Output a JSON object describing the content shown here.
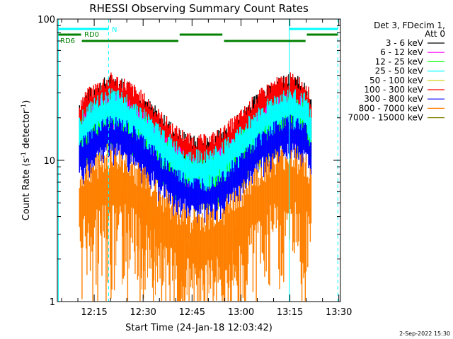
{
  "chart_data": {
    "type": "line",
    "title": "RHESSI Observing Summary Count Rates",
    "xlabel": "Start Time (24-Jan-18 12:03:42)",
    "ylabel_main": "Count Rate (s",
    "ylabel_sup": "-1",
    "ylabel_rest": " detector",
    "ylabel_sup2": "-1",
    "ylabel_end": ")",
    "yscale": "log",
    "ylim": [
      1,
      100
    ],
    "y_ticks": [
      {
        "value": 1,
        "label": "1"
      },
      {
        "value": 10,
        "label": "10"
      },
      {
        "value": 100,
        "label": "100"
      }
    ],
    "xlim_minutes": [
      3.7,
      90.5
    ],
    "x_ticks": [
      {
        "minute": 15,
        "label": "12:15"
      },
      {
        "minute": 30,
        "label": "12:30"
      },
      {
        "minute": 45,
        "label": "12:45"
      },
      {
        "minute": 60,
        "label": "13:00"
      },
      {
        "minute": 75,
        "label": "13:15"
      },
      {
        "minute": 90,
        "label": "13:30"
      }
    ],
    "legend_header": [
      "Det 3, FDecim 1,",
      "Att 0"
    ],
    "series": [
      {
        "name": "3 - 6 keV",
        "color": "#000000",
        "scale": 0.98
      },
      {
        "name": "6 - 12 keV",
        "color": "#ff00ff",
        "scale": 0.72
      },
      {
        "name": "12 - 25 keV",
        "color": "#00ff00",
        "scale": 0.68
      },
      {
        "name": "25 - 50 keV",
        "color": "#00ffff",
        "scale": 0.78
      },
      {
        "name": "50 - 100 keV",
        "color": "#cccc00",
        "scale": 0.6
      },
      {
        "name": "100 - 300 keV",
        "color": "#ff0000",
        "scale": 1.0
      },
      {
        "name": "300 - 800 keV",
        "color": "#0000ff",
        "scale": 0.5
      },
      {
        "name": "800 - 7000 keV",
        "color": "#ff8000",
        "scale": 0.25
      },
      {
        "name": "7000 - 15000 keV",
        "color": "#808000",
        "scale": 0.0
      }
    ],
    "envelope_minutes": [
      10.5,
      15,
      20,
      25,
      30,
      35,
      40,
      45,
      50,
      55,
      60,
      65,
      70,
      75,
      80,
      81.5
    ],
    "envelope_values": [
      22,
      28,
      33,
      30,
      24,
      18,
      14,
      12,
      12,
      14,
      18,
      24,
      30,
      33,
      30,
      22
    ],
    "data_window_minutes": [
      10.5,
      81.5
    ],
    "markers": {
      "saa_label": "N",
      "rd0_label": "RD0",
      "rd6_label": "RD6",
      "cyan_solid_minutes": [
        4.0,
        74.8
      ],
      "cyan_dashed_minutes": [
        19.4,
        89.7
      ],
      "cyan_bars": [
        [
          4.0,
          19.4
        ],
        [
          74.8,
          89.7
        ]
      ],
      "green_upper_bars": [
        [
          4.0,
          11.0
        ],
        [
          41.2,
          54.3
        ],
        [
          80.2,
          89.7
        ]
      ],
      "green_lower_bars": [
        [
          11.2,
          40.8
        ],
        [
          54.8,
          79.8
        ]
      ]
    },
    "colors": {
      "saa": "#00ffff",
      "decim": "#008000"
    }
  },
  "footer": {
    "date": "2-Sep-2022 15:30"
  }
}
